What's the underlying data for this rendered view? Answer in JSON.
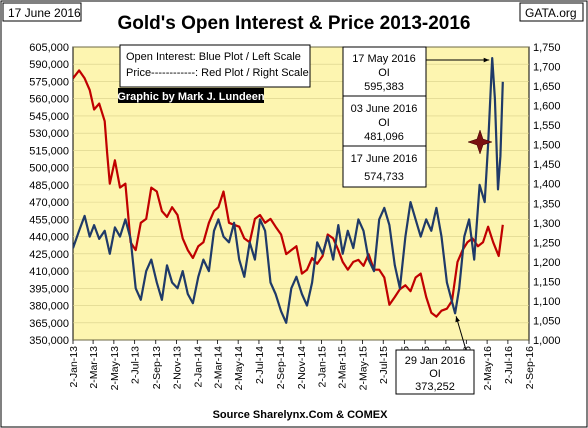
{
  "chart_data": {
    "type": "line",
    "title": "Gold's Open Interest & Price 2013-2016",
    "date_label": "17 June 2016",
    "brand_label": "GATA.org",
    "source": "Source Sharelynx.Com & COMEX",
    "legend": {
      "line1": "Open Interest:  Blue Plot / Left Scale",
      "line2": "Price------------: Red Plot / Right Scale",
      "credit": "Graphic by Mark J. Lundeen"
    },
    "left_axis": {
      "min": 350000,
      "max": 605000,
      "ticks": [
        "350,000",
        "365,000",
        "380,000",
        "395,000",
        "410,000",
        "425,000",
        "440,000",
        "455,000",
        "470,000",
        "485,000",
        "500,000",
        "515,000",
        "530,000",
        "545,000",
        "560,000",
        "575,000",
        "590,000",
        "605,000"
      ]
    },
    "right_axis": {
      "min": 1000,
      "max": 1750,
      "ticks": [
        "1,000",
        "1,050",
        "1,100",
        "1,150",
        "1,200",
        "1,250",
        "1,300",
        "1,350",
        "1,400",
        "1,450",
        "1,500",
        "1,550",
        "1,600",
        "1,650",
        "1,700",
        "1,750"
      ]
    },
    "x_axis": {
      "start": "2013-01-02",
      "end": "2016-09-02",
      "ticks": [
        {
          "date": "2013-01-02",
          "label": "2-Jan-13"
        },
        {
          "date": "2013-03-02",
          "label": "2-Mar-13"
        },
        {
          "date": "2013-05-02",
          "label": "2-May-13"
        },
        {
          "date": "2013-07-02",
          "label": "2-Jul-13"
        },
        {
          "date": "2013-09-02",
          "label": "2-Sep-13"
        },
        {
          "date": "2013-11-02",
          "label": "2-Nov-13"
        },
        {
          "date": "2014-01-02",
          "label": "2-Jan-14"
        },
        {
          "date": "2014-03-02",
          "label": "2-Mar-14"
        },
        {
          "date": "2014-05-02",
          "label": "2-May-14"
        },
        {
          "date": "2014-07-02",
          "label": "2-Jul-14"
        },
        {
          "date": "2014-09-02",
          "label": "2-Sep-14"
        },
        {
          "date": "2014-11-02",
          "label": "2-Nov-14"
        },
        {
          "date": "2015-01-02",
          "label": "2-Jan-15"
        },
        {
          "date": "2015-03-02",
          "label": "2-Mar-15"
        },
        {
          "date": "2015-05-02",
          "label": "2-May-15"
        },
        {
          "date": "2015-07-02",
          "label": "2-Jul-15"
        },
        {
          "date": "2015-09-02",
          "label": "2-Sep-15"
        },
        {
          "date": "2015-11-02",
          "label": "2-Nov-15"
        },
        {
          "date": "2016-01-02",
          "label": "2-Jan-16"
        },
        {
          "date": "2016-03-02",
          "label": "2-Mar-16"
        },
        {
          "date": "2016-05-02",
          "label": "2-May-16"
        },
        {
          "date": "2016-07-02",
          "label": "2-Jul-16"
        },
        {
          "date": "2016-09-02",
          "label": "2-Sep-16"
        }
      ]
    },
    "grid": true,
    "series": [
      {
        "name": "Open Interest",
        "axis": "left",
        "color": "#1f3a68",
        "x": [
          "2013-01-02",
          "2013-01-20",
          "2013-02-05",
          "2013-02-20",
          "2013-03-05",
          "2013-03-20",
          "2013-04-05",
          "2013-04-20",
          "2013-05-05",
          "2013-05-20",
          "2013-06-05",
          "2013-06-20",
          "2013-07-05",
          "2013-07-20",
          "2013-08-05",
          "2013-08-20",
          "2013-09-05",
          "2013-09-20",
          "2013-10-05",
          "2013-10-20",
          "2013-11-05",
          "2013-11-20",
          "2013-12-05",
          "2013-12-20",
          "2014-01-05",
          "2014-01-20",
          "2014-02-05",
          "2014-02-20",
          "2014-03-05",
          "2014-03-20",
          "2014-04-05",
          "2014-04-20",
          "2014-05-05",
          "2014-05-20",
          "2014-06-05",
          "2014-06-20",
          "2014-07-05",
          "2014-07-20",
          "2014-08-05",
          "2014-08-20",
          "2014-09-05",
          "2014-09-20",
          "2014-10-05",
          "2014-10-20",
          "2014-11-05",
          "2014-11-20",
          "2014-12-05",
          "2014-12-20",
          "2015-01-05",
          "2015-01-20",
          "2015-02-05",
          "2015-02-20",
          "2015-03-05",
          "2015-03-20",
          "2015-04-05",
          "2015-04-20",
          "2015-05-05",
          "2015-05-20",
          "2015-06-05",
          "2015-06-20",
          "2015-07-05",
          "2015-07-20",
          "2015-08-05",
          "2015-08-20",
          "2015-09-05",
          "2015-09-20",
          "2015-10-05",
          "2015-10-20",
          "2015-11-05",
          "2015-11-20",
          "2015-12-05",
          "2015-12-20",
          "2016-01-05",
          "2016-01-29",
          "2016-02-10",
          "2016-02-25",
          "2016-03-10",
          "2016-03-25",
          "2016-04-10",
          "2016-04-25",
          "2016-05-05",
          "2016-05-17",
          "2016-05-25",
          "2016-06-03",
          "2016-06-10",
          "2016-06-17"
        ],
        "values": [
          430000,
          445000,
          458000,
          440000,
          450000,
          438000,
          445000,
          425000,
          448000,
          440000,
          455000,
          438000,
          395000,
          385000,
          410000,
          420000,
          400000,
          385000,
          415000,
          400000,
          395000,
          410000,
          390000,
          382000,
          405000,
          420000,
          410000,
          445000,
          455000,
          440000,
          435000,
          452000,
          420000,
          405000,
          435000,
          420000,
          455000,
          445000,
          400000,
          390000,
          375000,
          365000,
          395000,
          405000,
          390000,
          380000,
          400000,
          435000,
          425000,
          440000,
          420000,
          450000,
          425000,
          445000,
          430000,
          455000,
          445000,
          420000,
          410000,
          455000,
          465000,
          450000,
          415000,
          395000,
          440000,
          470000,
          455000,
          440000,
          455000,
          445000,
          465000,
          440000,
          400000,
          373252,
          395000,
          440000,
          455000,
          420000,
          485000,
          470000,
          520000,
          595383,
          560000,
          481096,
          510000,
          574733
        ]
      },
      {
        "name": "Price",
        "axis": "right",
        "color": "#c00000",
        "x": [
          "2013-01-02",
          "2013-01-20",
          "2013-02-05",
          "2013-02-20",
          "2013-03-05",
          "2013-03-20",
          "2013-04-05",
          "2013-04-12",
          "2013-04-20",
          "2013-05-05",
          "2013-05-20",
          "2013-06-05",
          "2013-06-20",
          "2013-07-05",
          "2013-07-20",
          "2013-08-05",
          "2013-08-20",
          "2013-09-05",
          "2013-09-20",
          "2013-10-05",
          "2013-10-20",
          "2013-11-05",
          "2013-11-20",
          "2013-12-05",
          "2013-12-20",
          "2014-01-05",
          "2014-01-20",
          "2014-02-05",
          "2014-02-20",
          "2014-03-05",
          "2014-03-20",
          "2014-04-05",
          "2014-04-20",
          "2014-05-05",
          "2014-05-20",
          "2014-06-05",
          "2014-06-20",
          "2014-07-05",
          "2014-07-20",
          "2014-08-05",
          "2014-08-20",
          "2014-09-05",
          "2014-09-20",
          "2014-10-05",
          "2014-10-20",
          "2014-11-05",
          "2014-11-20",
          "2014-12-05",
          "2014-12-20",
          "2015-01-05",
          "2015-01-20",
          "2015-02-05",
          "2015-02-20",
          "2015-03-05",
          "2015-03-20",
          "2015-04-05",
          "2015-04-20",
          "2015-05-05",
          "2015-05-20",
          "2015-06-05",
          "2015-06-20",
          "2015-07-05",
          "2015-07-20",
          "2015-08-05",
          "2015-08-20",
          "2015-09-05",
          "2015-09-20",
          "2015-10-05",
          "2015-10-20",
          "2015-11-05",
          "2015-11-20",
          "2015-12-05",
          "2015-12-20",
          "2016-01-05",
          "2016-01-20",
          "2016-02-05",
          "2016-02-20",
          "2016-03-05",
          "2016-03-20",
          "2016-04-05",
          "2016-04-20",
          "2016-05-05",
          "2016-05-20",
          "2016-06-05",
          "2016-06-17"
        ],
        "values": [
          1670,
          1690,
          1670,
          1640,
          1590,
          1605,
          1560,
          1480,
          1400,
          1460,
          1390,
          1400,
          1250,
          1230,
          1300,
          1310,
          1390,
          1380,
          1330,
          1315,
          1340,
          1320,
          1260,
          1230,
          1210,
          1240,
          1250,
          1300,
          1330,
          1340,
          1380,
          1300,
          1295,
          1290,
          1260,
          1250,
          1310,
          1320,
          1300,
          1310,
          1290,
          1270,
          1220,
          1230,
          1240,
          1170,
          1180,
          1210,
          1195,
          1215,
          1270,
          1260,
          1230,
          1200,
          1180,
          1200,
          1205,
          1190,
          1220,
          1180,
          1180,
          1160,
          1090,
          1110,
          1130,
          1140,
          1125,
          1160,
          1170,
          1110,
          1070,
          1060,
          1075,
          1080,
          1100,
          1200,
          1230,
          1250,
          1260,
          1240,
          1250,
          1290,
          1250,
          1215,
          1295
        ]
      }
    ],
    "annotations": {
      "peak": {
        "date": "17 May 2016",
        "label": "OI",
        "value": "595,383"
      },
      "mid": {
        "date": "03 June 2016",
        "label": "OI",
        "value": "481,096"
      },
      "last": {
        "date": "17 June 2016",
        "label": "OI",
        "value": "574,733"
      },
      "low": {
        "date": "29 Jan 2016",
        "label": "OI",
        "value": "373,252"
      }
    }
  }
}
